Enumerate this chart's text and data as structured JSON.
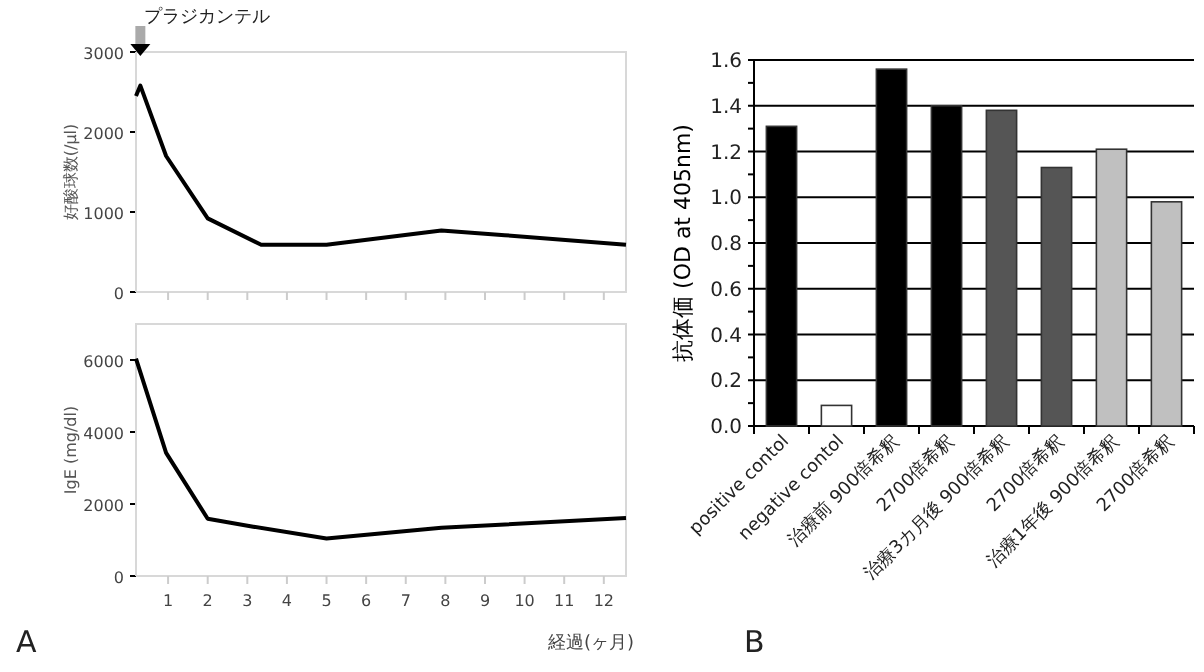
{
  "chart_data": [
    {
      "type": "line",
      "ylabel": "好酸球数(/μl)",
      "x": [
        0.19,
        0.3,
        0.95,
        2.0,
        3.35,
        5.0,
        7.9,
        9.5,
        12.56
      ],
      "series": [
        {
          "color": "#000000",
          "values": [
            2450,
            2580,
            1700,
            920,
            590,
            590,
            770,
            710,
            590
          ]
        }
      ],
      "xlim": [
        0.19,
        12.56
      ],
      "ylim": [
        0,
        3000
      ],
      "yticks": [
        0,
        1000,
        2000,
        3000
      ],
      "xticks": [
        {
          "value": 1,
          "label": null
        },
        {
          "value": 2,
          "label": null
        },
        {
          "value": 3,
          "label": null
        },
        {
          "value": 4,
          "label": null
        },
        {
          "value": 5,
          "label": null
        },
        {
          "value": 6,
          "label": null
        },
        {
          "value": 7,
          "label": null
        },
        {
          "value": 8,
          "label": null
        },
        {
          "value": 9,
          "label": null
        },
        {
          "value": 10,
          "label": null
        },
        {
          "value": 11,
          "label": null
        },
        {
          "value": 12,
          "label": null
        }
      ],
      "tick_labels": "y",
      "annotations": [
        {
          "text": "プラジカンテル",
          "x": 0.3,
          "y": 3000
        }
      ]
    },
    {
      "type": "line",
      "ylabel": "IgE (mg/dl)",
      "xlabel": "経過(ヶ月)",
      "x": [
        0.19,
        0.95,
        2.0,
        3.15,
        5.0,
        7.9,
        12.56
      ],
      "series": [
        {
          "color": "#000000",
          "values": [
            6040,
            3420,
            1590,
            1370,
            1040,
            1340,
            1610
          ]
        }
      ],
      "xlim": [
        0.19,
        12.56
      ],
      "ylim": [
        0,
        7000
      ],
      "yticks": [
        0,
        2000,
        4000,
        6000
      ],
      "xticks": [
        1,
        2,
        3,
        4,
        5,
        6,
        7,
        8,
        9,
        10,
        11,
        12
      ],
      "annotations": [
        "A"
      ]
    },
    {
      "type": "bar",
      "ylabel": "抗体価 (OD at 405nm)",
      "categories": [
        "positive contol",
        "negative contol",
        "治療前 900倍希釈",
        "2700倍希釈",
        "治療3カ月後 900倍希釈",
        "2700倍希釈",
        "治療1年後 900倍希釈",
        "2700倍希釈"
      ],
      "values": [
        1.31,
        0.09,
        1.56,
        1.4,
        1.38,
        1.13,
        1.21,
        0.98
      ],
      "colors": [
        "#000000",
        "#ffffff",
        "#000000",
        "#000000",
        "#555555",
        "#555555",
        "#c0c0c0",
        "#c0c0c0"
      ],
      "ylim": [
        0,
        1.6
      ],
      "yticks": [
        {
          "value": 0,
          "label": "0.0"
        },
        {
          "value": 0.1,
          "label": null
        },
        {
          "value": 0.2,
          "label": "0.2"
        },
        {
          "value": 0.3,
          "label": null
        },
        {
          "value": 0.4,
          "label": "0.4"
        },
        {
          "value": 0.5,
          "label": null
        },
        {
          "value": 0.6,
          "label": "0.6"
        },
        {
          "value": 0.7,
          "label": null
        },
        {
          "value": 0.8,
          "label": "0.8"
        },
        {
          "value": 0.9,
          "label": null
        },
        {
          "value": 1,
          "label": "1.0"
        },
        {
          "value": 1.1,
          "label": null
        },
        {
          "value": 1.2,
          "label": "1.2"
        },
        {
          "value": 1.3,
          "label": null
        },
        {
          "value": 1.4,
          "label": "1.4"
        },
        {
          "value": 1.5,
          "label": null
        },
        {
          "value": 1.6,
          "label": "1.6"
        }
      ],
      "grid": "y",
      "annotations": [
        "B"
      ]
    }
  ]
}
